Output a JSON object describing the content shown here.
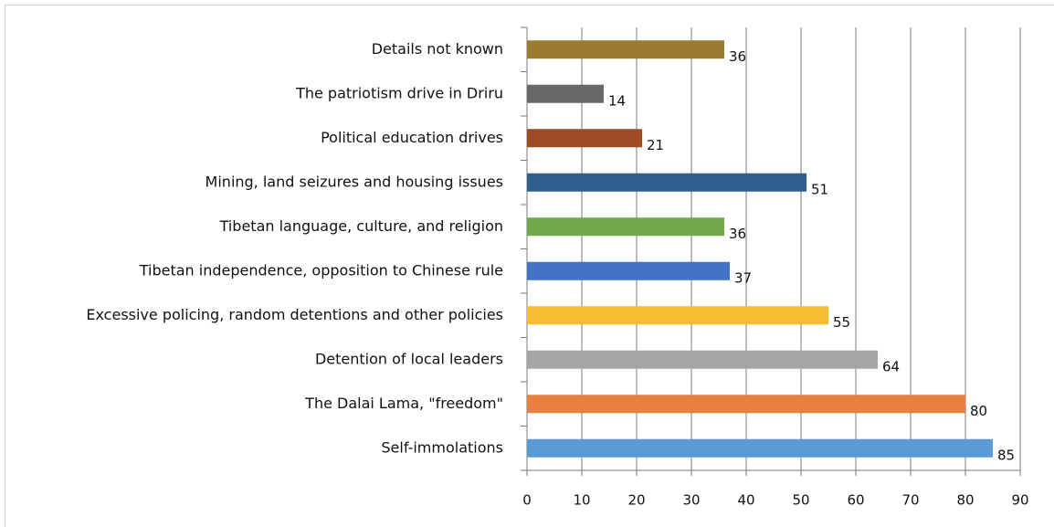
{
  "chart_data": {
    "type": "bar",
    "orientation": "horizontal",
    "categories": [
      "Details not known",
      "The patriotism drive in Driru",
      "Political education drives",
      "Mining, land seizures and housing issues",
      "Tibetan language, culture, and religion",
      "Tibetan independence, opposition to Chinese rule",
      "Excessive policing, random detentions and other policies",
      "Detention of local leaders",
      "The Dalai Lama, \"freedom\"",
      "Self-immolations"
    ],
    "values": [
      36,
      14,
      21,
      51,
      36,
      37,
      55,
      64,
      80,
      85
    ],
    "colors": [
      "#9b7b2f",
      "#686868",
      "#9e4a24",
      "#2e5f8e",
      "#70a84a",
      "#4472c4",
      "#f5bd2e",
      "#a5a5a5",
      "#e8803f",
      "#5b9bd5"
    ],
    "xlim": [
      0,
      90
    ],
    "xticks": [
      0,
      10,
      20,
      30,
      40,
      50,
      60,
      70,
      80,
      90
    ],
    "grid": true
  }
}
